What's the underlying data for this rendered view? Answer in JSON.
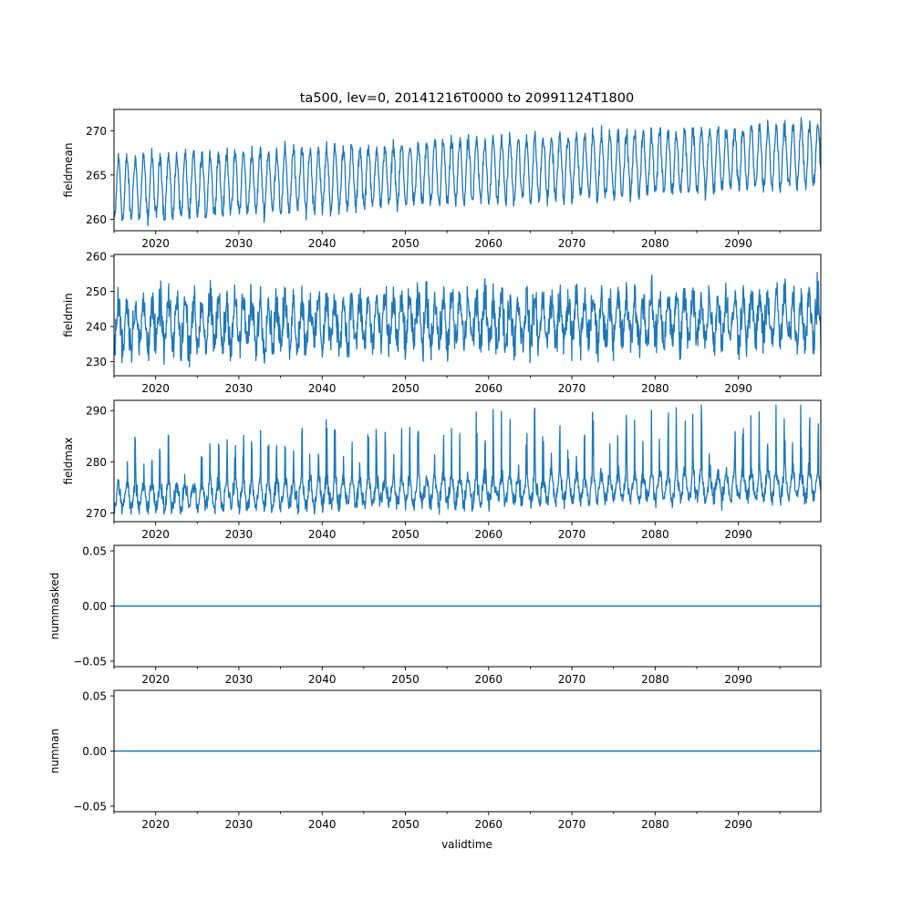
{
  "figure": {
    "title": "ta500, lev=0, 20141216T0000 to 20991124T1800",
    "xlabel": "validtime",
    "line_color": "#1f77b4"
  },
  "chart_data": [
    {
      "type": "line",
      "name": "fieldmean",
      "ylabel": "fieldmean",
      "xlim": [
        2015.0,
        2099.9
      ],
      "ylim": [
        258.7,
        272.4
      ],
      "xticks": [
        2020,
        2030,
        2040,
        2050,
        2060,
        2070,
        2080,
        2090
      ],
      "xtick_labels": [
        "2020",
        "2030",
        "2040",
        "2050",
        "2060",
        "2070",
        "2080",
        "2090"
      ],
      "yticks": [
        260,
        265,
        270
      ],
      "ytick_labels": [
        "260",
        "265",
        "270"
      ],
      "series": [
        {
          "name": "fieldmean",
          "description": "seasonal cycle, 6-hourly",
          "x_start": 2014.96,
          "x_end": 2099.9,
          "base_start": 263.4,
          "base_end": 267.3,
          "amplitude": 3.4,
          "noise": 0.8,
          "extremes": {
            "min": 259.1,
            "max": 271.9
          }
        }
      ]
    },
    {
      "type": "line",
      "name": "fieldmin",
      "ylabel": "fieldmin",
      "xlim": [
        2015.0,
        2099.9
      ],
      "ylim": [
        226.0,
        260.5
      ],
      "xticks": [
        2020,
        2030,
        2040,
        2050,
        2060,
        2070,
        2080,
        2090
      ],
      "xtick_labels": [
        "2020",
        "2030",
        "2040",
        "2050",
        "2060",
        "2070",
        "2080",
        "2090"
      ],
      "yticks": [
        230,
        240,
        250,
        260
      ],
      "ytick_labels": [
        "230",
        "240",
        "250",
        "260"
      ],
      "series": [
        {
          "name": "fieldmin",
          "description": "seasonal cycle with large 6-hourly noise",
          "x_start": 2014.96,
          "x_end": 2099.9,
          "base_start": 240.5,
          "base_end": 242.5,
          "amplitude": 6.0,
          "noise": 5.0,
          "extremes": {
            "min": 227.5,
            "max": 259.0
          }
        }
      ]
    },
    {
      "type": "line",
      "name": "fieldmax",
      "ylabel": "fieldmax",
      "xlim": [
        2015.0,
        2099.9
      ],
      "ylim": [
        268.3,
        292.0
      ],
      "xticks": [
        2020,
        2030,
        2040,
        2050,
        2060,
        2070,
        2080,
        2090
      ],
      "xtick_labels": [
        "2020",
        "2030",
        "2040",
        "2050",
        "2060",
        "2070",
        "2080",
        "2090"
      ],
      "yticks": [
        270,
        280,
        290
      ],
      "ytick_labels": [
        "270",
        "280",
        "290"
      ],
      "series": [
        {
          "name": "fieldmax",
          "description": "noisy baseline with seasonal spikes",
          "x_start": 2014.96,
          "x_end": 2099.9,
          "base_start": 273.2,
          "base_end": 275.8,
          "amplitude": 2.5,
          "noise": 1.6,
          "extremes": {
            "min": 269.8,
            "max": 291.1
          }
        }
      ]
    },
    {
      "type": "line",
      "name": "nummasked",
      "ylabel": "nummasked",
      "xlim": [
        2015.0,
        2099.9
      ],
      "ylim": [
        -0.055,
        0.055
      ],
      "xticks": [
        2020,
        2030,
        2040,
        2050,
        2060,
        2070,
        2080,
        2090
      ],
      "xtick_labels": [
        "2020",
        "2030",
        "2040",
        "2050",
        "2060",
        "2070",
        "2080",
        "2090"
      ],
      "yticks": [
        -0.05,
        0.0,
        0.05
      ],
      "ytick_labels": [
        "−0.05",
        "0.00",
        "0.05"
      ],
      "series": [
        {
          "name": "nummasked",
          "description": "constant",
          "x": [
            2014.96,
            2099.9
          ],
          "y": [
            0,
            0
          ]
        }
      ]
    },
    {
      "type": "line",
      "name": "numnan",
      "ylabel": "numnan",
      "xlim": [
        2015.0,
        2099.9
      ],
      "ylim": [
        -0.055,
        0.055
      ],
      "xticks": [
        2020,
        2030,
        2040,
        2050,
        2060,
        2070,
        2080,
        2090
      ],
      "xtick_labels": [
        "2020",
        "2030",
        "2040",
        "2050",
        "2060",
        "2070",
        "2080",
        "2090"
      ],
      "yticks": [
        -0.05,
        0.0,
        0.05
      ],
      "ytick_labels": [
        "−0.05",
        "0.00",
        "0.05"
      ],
      "series": [
        {
          "name": "numnan",
          "description": "constant",
          "x": [
            2014.96,
            2099.9
          ],
          "y": [
            0,
            0
          ]
        }
      ]
    }
  ]
}
